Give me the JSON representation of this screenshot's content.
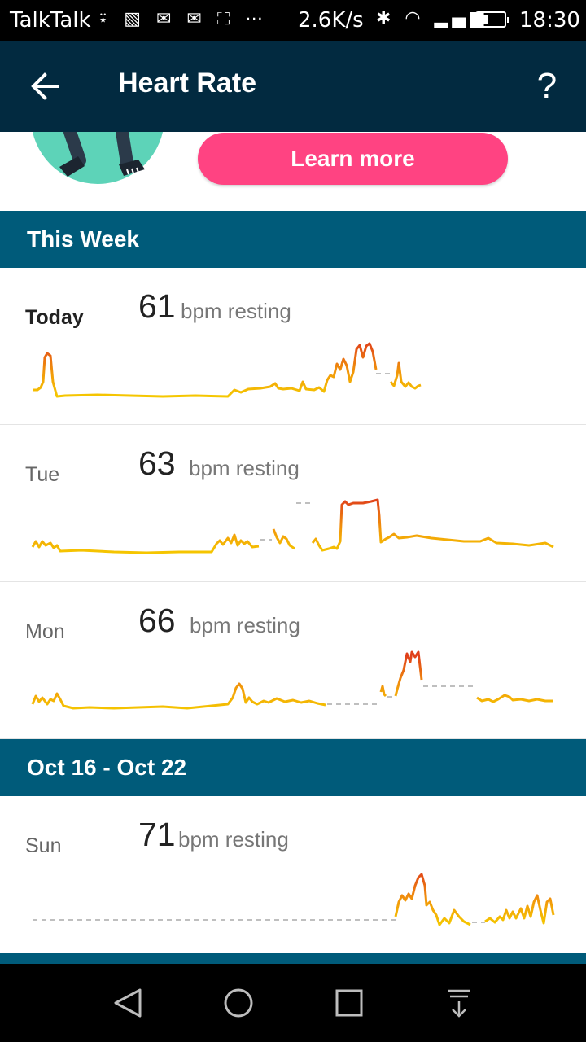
{
  "status_bar": {
    "carrier": "TalkTalk",
    "notification_icons": "⍣ ▧ ✉ ✉ ⛶ ⋯",
    "network_speed": "2.6K/s",
    "system_icons": "✱ ◠ ▂▄▆",
    "time": "18:30",
    "battery_level": 0.35
  },
  "app_bar": {
    "title": "Heart Rate",
    "help_label": "?"
  },
  "promo": {
    "learn_more_label": "Learn more"
  },
  "sections": {
    "this_week": "This Week",
    "oct_range": "Oct 16 - Oct 22"
  },
  "days": {
    "today": {
      "label": "Today",
      "value": "61",
      "unit": "bpm resting"
    },
    "tue": {
      "label": "Tue",
      "value": "63",
      "unit": "bpm resting"
    },
    "mon": {
      "label": "Mon",
      "value": "66",
      "unit": "bpm resting"
    },
    "sun": {
      "label": "Sun",
      "value": "71",
      "unit": "bpm resting"
    }
  },
  "colors": {
    "app_bar": "#022a40",
    "section_header": "#005b7a",
    "learn_more": "#ff4382",
    "trace_low": "#f5c800",
    "trace_high": "#e0401a"
  }
}
